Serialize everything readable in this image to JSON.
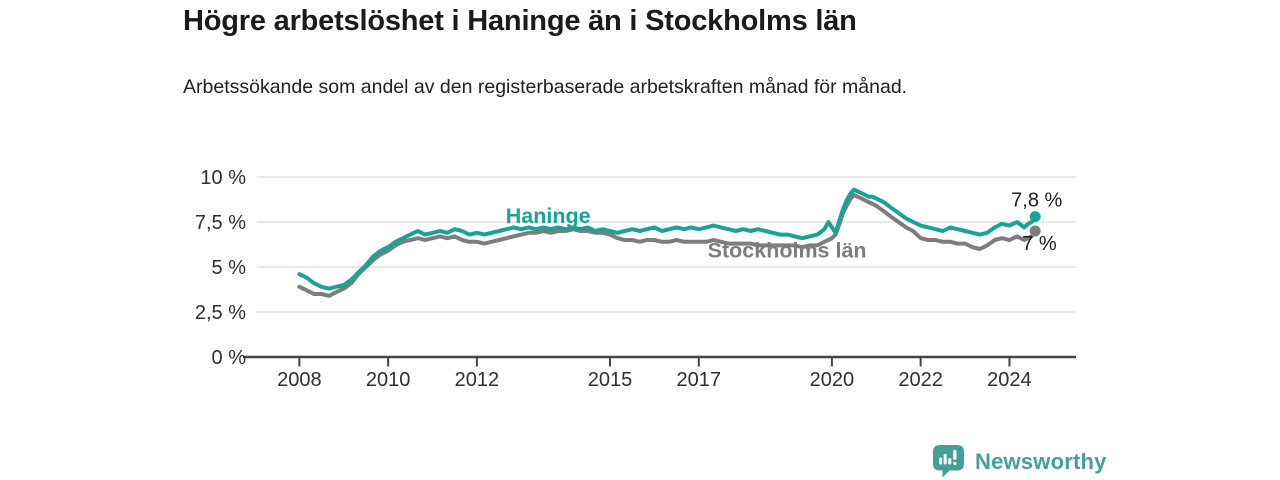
{
  "title": "Högre arbetslöshet i Haninge än i Stockholms län",
  "subtitle": "Arbetssökande som andel av den registerbaserade arbetskraften månad för månad.",
  "branding": {
    "logo_text": "Newsworthy",
    "logo_icon": "bar-chart-speech-bubble-icon",
    "color": "#43a096"
  },
  "colors": {
    "haninge": "#1aa392",
    "stockholm": "#7d7d7d",
    "axis_text": "#2f2f2f",
    "gridline": "#dcdcdc",
    "axis_line": "#454545",
    "end_label_text": "#1f1f1f"
  },
  "chart_data": {
    "type": "line",
    "unit": "%",
    "title": "Högre arbetslöshet i Haninge än i Stockholms län",
    "xlabel": "",
    "ylabel": "",
    "grid": true,
    "legend_position": "inline-labels",
    "ylim": [
      0,
      10
    ],
    "xlim": [
      2007,
      2025.5
    ],
    "y_ticks": [
      {
        "value": 10,
        "label": "10 %"
      },
      {
        "value": 7.5,
        "label": "7,5 %"
      },
      {
        "value": 5,
        "label": "5 %"
      },
      {
        "value": 2.5,
        "label": "2,5 %"
      },
      {
        "value": 0,
        "label": "0 %"
      }
    ],
    "x_ticks": [
      2008,
      2010,
      2012,
      2015,
      2017,
      2020,
      2022,
      2024
    ],
    "x": [
      2008,
      2008.17,
      2008.33,
      2008.5,
      2008.67,
      2008.83,
      2009,
      2009.17,
      2009.33,
      2009.5,
      2009.67,
      2009.83,
      2010,
      2010.17,
      2010.33,
      2010.5,
      2010.67,
      2010.83,
      2011,
      2011.17,
      2011.33,
      2011.5,
      2011.67,
      2011.83,
      2012,
      2012.17,
      2012.33,
      2012.5,
      2012.67,
      2012.83,
      2013,
      2013.17,
      2013.33,
      2013.5,
      2013.67,
      2013.83,
      2014,
      2014.17,
      2014.33,
      2014.5,
      2014.67,
      2014.83,
      2015,
      2015.17,
      2015.33,
      2015.5,
      2015.67,
      2015.83,
      2016,
      2016.17,
      2016.33,
      2016.5,
      2016.67,
      2016.83,
      2017,
      2017.17,
      2017.33,
      2017.5,
      2017.67,
      2017.83,
      2018,
      2018.17,
      2018.33,
      2018.5,
      2018.67,
      2018.83,
      2019,
      2019.17,
      2019.33,
      2019.5,
      2019.67,
      2019.83,
      2019.92,
      2020,
      2020.08,
      2020.17,
      2020.25,
      2020.33,
      2020.42,
      2020.5,
      2020.58,
      2020.67,
      2020.75,
      2020.83,
      2020.92,
      2021,
      2021.17,
      2021.33,
      2021.5,
      2021.67,
      2021.83,
      2022,
      2022.17,
      2022.33,
      2022.5,
      2022.67,
      2022.83,
      2023,
      2023.17,
      2023.33,
      2023.5,
      2023.67,
      2023.83,
      2024,
      2024.17,
      2024.33,
      2024.42,
      2024.5,
      2024.58
    ],
    "series": [
      {
        "name": "Haninge",
        "color": "#1aa392",
        "end_label": "7,8 %",
        "values": [
          4.6,
          4.4,
          4.1,
          3.9,
          3.8,
          3.9,
          4.0,
          4.3,
          4.7,
          5.1,
          5.6,
          5.9,
          6.1,
          6.4,
          6.6,
          6.8,
          7.0,
          6.8,
          6.9,
          7.0,
          6.9,
          7.1,
          7.0,
          6.8,
          6.9,
          6.8,
          6.9,
          7.0,
          7.1,
          7.2,
          7.1,
          7.2,
          7.1,
          7.2,
          7.1,
          7.2,
          7.1,
          7.2,
          7.1,
          7.2,
          7.0,
          7.1,
          7.0,
          6.9,
          7.0,
          7.1,
          7.0,
          7.1,
          7.2,
          7.0,
          7.1,
          7.2,
          7.1,
          7.2,
          7.1,
          7.2,
          7.3,
          7.2,
          7.1,
          7.0,
          7.1,
          7.0,
          7.1,
          7.0,
          6.9,
          6.8,
          6.8,
          6.7,
          6.6,
          6.7,
          6.8,
          7.1,
          7.5,
          7.2,
          6.9,
          7.6,
          8.2,
          8.7,
          9.1,
          9.3,
          9.2,
          9.1,
          9.0,
          8.9,
          8.9,
          8.8,
          8.6,
          8.3,
          8.0,
          7.7,
          7.5,
          7.3,
          7.2,
          7.1,
          7.0,
          7.2,
          7.1,
          7.0,
          6.9,
          6.8,
          6.9,
          7.2,
          7.4,
          7.3,
          7.5,
          7.2,
          7.4,
          7.5,
          7.8
        ]
      },
      {
        "name": "Stockholms län",
        "color": "#7d7d7d",
        "end_label": "7 %",
        "values": [
          3.9,
          3.7,
          3.5,
          3.5,
          3.4,
          3.6,
          3.8,
          4.1,
          4.6,
          5.0,
          5.4,
          5.7,
          5.9,
          6.2,
          6.4,
          6.5,
          6.6,
          6.5,
          6.6,
          6.7,
          6.6,
          6.7,
          6.5,
          6.4,
          6.4,
          6.3,
          6.4,
          6.5,
          6.6,
          6.7,
          6.8,
          6.9,
          6.9,
          7.0,
          6.9,
          7.0,
          7.0,
          7.1,
          7.0,
          7.0,
          6.9,
          6.9,
          6.8,
          6.6,
          6.5,
          6.5,
          6.4,
          6.5,
          6.5,
          6.4,
          6.4,
          6.5,
          6.4,
          6.4,
          6.4,
          6.4,
          6.5,
          6.4,
          6.3,
          6.3,
          6.3,
          6.3,
          6.2,
          6.2,
          6.2,
          6.2,
          6.2,
          6.2,
          6.1,
          6.2,
          6.2,
          6.4,
          6.5,
          6.6,
          6.8,
          7.4,
          8.0,
          8.4,
          8.8,
          9.0,
          8.9,
          8.8,
          8.7,
          8.6,
          8.5,
          8.4,
          8.1,
          7.8,
          7.5,
          7.2,
          7.0,
          6.6,
          6.5,
          6.5,
          6.4,
          6.4,
          6.3,
          6.3,
          6.1,
          6.0,
          6.2,
          6.5,
          6.6,
          6.5,
          6.7,
          6.5,
          6.6,
          6.7,
          7.0
        ]
      }
    ]
  }
}
